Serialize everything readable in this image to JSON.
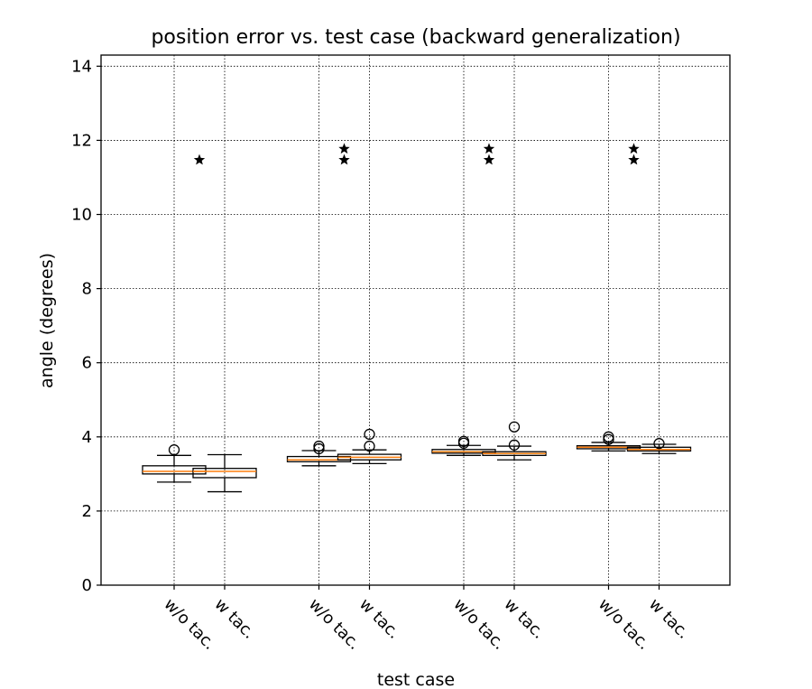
{
  "chart_data": {
    "type": "box",
    "title": "position error vs. test case (backward generalization)",
    "xlabel": "test case",
    "ylabel": "angle (degrees)",
    "ylim": [
      0,
      14.3
    ],
    "yticks": [
      0,
      2,
      4,
      6,
      8,
      10,
      12,
      14
    ],
    "grid": true,
    "categories": [
      "w/o tac.",
      "w tac.",
      "w/o tac.",
      "w tac.",
      "w/o tac.",
      "w tac.",
      "w/o tac.",
      "w tac."
    ],
    "boxes": [
      {
        "label": "w/o tac.",
        "whisker_low": 2.78,
        "q1": 3.0,
        "median": 3.07,
        "q3": 3.22,
        "whisker_high": 3.5,
        "fliers": [
          3.65
        ]
      },
      {
        "label": "w tac.",
        "whisker_low": 2.52,
        "q1": 2.9,
        "median": 3.07,
        "q3": 3.15,
        "whisker_high": 3.52,
        "fliers": []
      },
      {
        "label": "w/o tac.",
        "whisker_low": 3.22,
        "q1": 3.33,
        "median": 3.38,
        "q3": 3.47,
        "whisker_high": 3.63,
        "fliers": [
          3.68,
          3.75
        ]
      },
      {
        "label": "w tac.",
        "whisker_low": 3.28,
        "q1": 3.38,
        "median": 3.45,
        "q3": 3.53,
        "whisker_high": 3.65,
        "fliers": [
          3.75,
          4.07
        ]
      },
      {
        "label": "w/o tac.",
        "whisker_low": 3.5,
        "q1": 3.56,
        "median": 3.6,
        "q3": 3.66,
        "whisker_high": 3.77,
        "fliers": [
          3.83,
          3.88
        ]
      },
      {
        "label": "w tac.",
        "whisker_low": 3.38,
        "q1": 3.5,
        "median": 3.55,
        "q3": 3.6,
        "whisker_high": 3.75,
        "fliers": [
          3.78,
          4.27
        ]
      },
      {
        "label": "w/o tac.",
        "whisker_low": 3.62,
        "q1": 3.68,
        "median": 3.72,
        "q3": 3.76,
        "whisker_high": 3.85,
        "fliers": [
          3.93,
          4.0
        ]
      },
      {
        "label": "w tac.",
        "whisker_low": 3.55,
        "q1": 3.62,
        "median": 3.66,
        "q3": 3.72,
        "whisker_high": 3.8,
        "fliers": [
          3.82
        ]
      }
    ],
    "means": [
      {
        "group": 1,
        "values": [
          11.47
        ]
      },
      {
        "group": 2,
        "values": [
          11.47,
          11.77
        ]
      },
      {
        "group": 3,
        "values": [
          11.47,
          11.77
        ]
      },
      {
        "group": 4,
        "values": [
          11.47,
          11.77
        ]
      }
    ]
  }
}
